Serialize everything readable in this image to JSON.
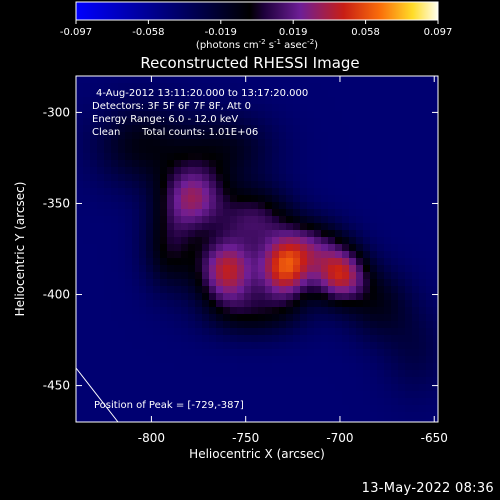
{
  "chart_data": {
    "type": "heatmap",
    "title": "Reconstructed RHESSI Image",
    "xlabel": "Heliocentric X (arcsec)",
    "ylabel": "Heliocentric Y (arcsec)",
    "xlim": [
      -840,
      -648
    ],
    "ylim": [
      -470,
      -280
    ],
    "xticks": [
      -800,
      -750,
      -700,
      -650
    ],
    "yticks": [
      -300,
      -350,
      -400,
      -450
    ],
    "colorbar": {
      "label_text": "(photons cm",
      "label_sup1": "-2",
      "label_mid": " s",
      "label_sup2": "-1",
      "label_mid2": " asec",
      "label_sup3": "-2",
      "label_end": ")",
      "ticks": [
        "-0.097",
        "-0.058",
        "-0.019",
        "0.019",
        "0.058",
        "0.097"
      ],
      "range": [
        -0.097,
        0.097
      ],
      "colormap": "blue-black-purple-red-yellow-white"
    },
    "annotations": {
      "time": "4-Aug-2012 13:11:20.000 to 13:17:20.000",
      "detectors": "Detectors: 3F 5F 6F 7F 8F, Att 0",
      "energy": "Energy Range: 6.0 - 12.0 keV",
      "method": "Clean",
      "counts": "Total counts: 1.01E+06",
      "peak": "Position of Peak = [-729,-387]"
    },
    "peak": {
      "x": -729,
      "y": -387
    },
    "sources": [
      {
        "x": -760,
        "y": -387,
        "sx": 11,
        "sy": 13,
        "amp": 0.085
      },
      {
        "x": -729,
        "y": -386,
        "sx": 10,
        "sy": 12,
        "amp": 0.092
      },
      {
        "x": -700,
        "y": -389,
        "sx": 10,
        "sy": 11,
        "amp": 0.084
      },
      {
        "x": -778,
        "y": -347,
        "sx": 12,
        "sy": 13,
        "amp": 0.068
      },
      {
        "x": -745,
        "y": -358,
        "sx": 14,
        "sy": 12,
        "amp": 0.05
      },
      {
        "x": -790,
        "y": -375,
        "sx": 10,
        "sy": 16,
        "amp": 0.04
      },
      {
        "x": -715,
        "y": -372,
        "sx": 12,
        "sy": 10,
        "amp": 0.042
      },
      {
        "x": -805,
        "y": -318,
        "sx": 18,
        "sy": 16,
        "amp": 0.034
      },
      {
        "x": -760,
        "y": -320,
        "sx": 18,
        "sy": 14,
        "amp": 0.03
      },
      {
        "x": -680,
        "y": -405,
        "sx": 12,
        "sy": 14,
        "amp": 0.03
      },
      {
        "x": -745,
        "y": -410,
        "sx": 18,
        "sy": 10,
        "amp": 0.034
      },
      {
        "x": -660,
        "y": -430,
        "sx": 12,
        "sy": 18,
        "amp": 0.016
      }
    ],
    "background": -0.045
  },
  "timestamp": "13-May-2022 08:36"
}
